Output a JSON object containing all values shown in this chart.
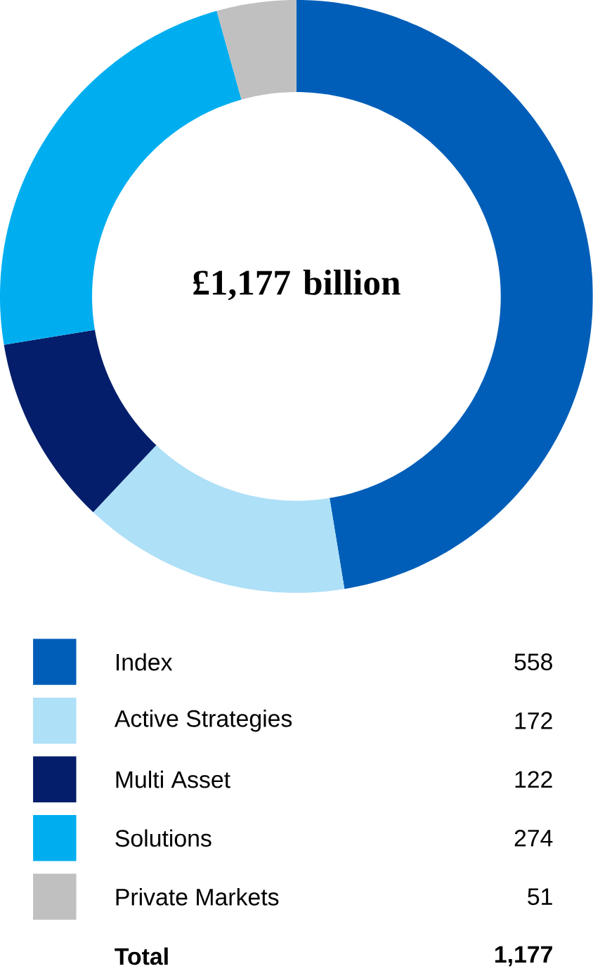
{
  "chart_data": {
    "type": "donut",
    "categories": [
      "Index",
      "Active Strategies",
      "Multi Asset",
      "Solutions",
      "Private Markets"
    ],
    "values": [
      558,
      172,
      122,
      274,
      51
    ],
    "colors": [
      "#005eb8",
      "#aee0f7",
      "#041e6b",
      "#00aeef",
      "#c0c0c0"
    ],
    "data_labels": true,
    "legend": "bottom",
    "annotations": [
      "£1,177 billion",
      "Total",
      "1,177"
    ]
  }
}
